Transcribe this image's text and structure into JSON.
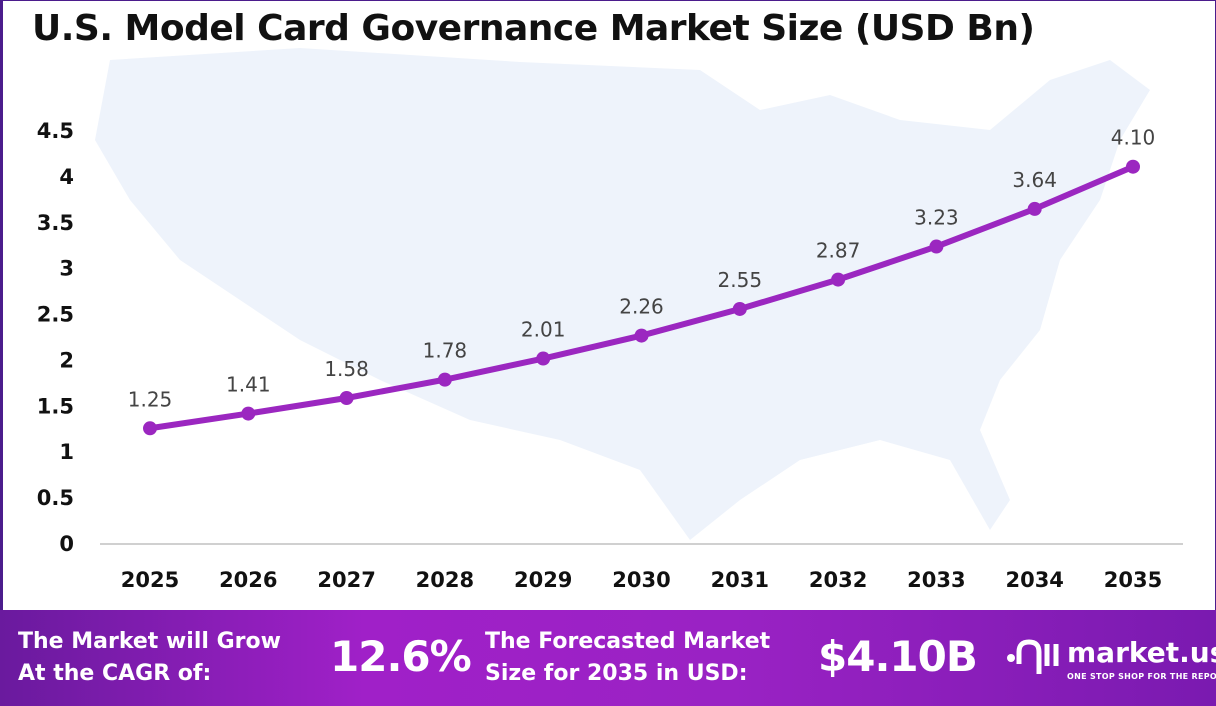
{
  "chart_data": {
    "type": "line",
    "title": "U.S. Model Card Governance Market Size (USD Bn)",
    "categories": [
      "2025",
      "2026",
      "2027",
      "2028",
      "2029",
      "2030",
      "2031",
      "2032",
      "2033",
      "2034",
      "2035"
    ],
    "values": [
      1.25,
      1.41,
      1.58,
      1.78,
      2.01,
      2.26,
      2.55,
      2.87,
      3.23,
      3.64,
      4.1
    ],
    "data_labels": [
      "1.25",
      "1.41",
      "1.58",
      "1.78",
      "2.01",
      "2.26",
      "2.55",
      "2.87",
      "3.23",
      "3.64",
      "4.10"
    ],
    "yticks": [
      "0",
      "0.5",
      "1",
      "1.5",
      "2",
      "2.5",
      "3",
      "3.5",
      "4",
      "4.5"
    ],
    "ylim": [
      0,
      4.5
    ],
    "xlabel": "",
    "ylabel": "",
    "grid": false,
    "line_color": "#9b27c0",
    "background_image": "us-map-silhouette"
  },
  "footer": {
    "cagr_text_1": "The Market will Grow",
    "cagr_text_2": "At the CAGR of:",
    "cagr_value": "12.6%",
    "forecast_text_1": "The Forecasted Market",
    "forecast_text_2": "Size for 2035 in USD:",
    "forecast_value": "$4.10B",
    "logo_name": "market.us",
    "logo_tagline": "ONE STOP SHOP FOR THE REPORTS"
  }
}
